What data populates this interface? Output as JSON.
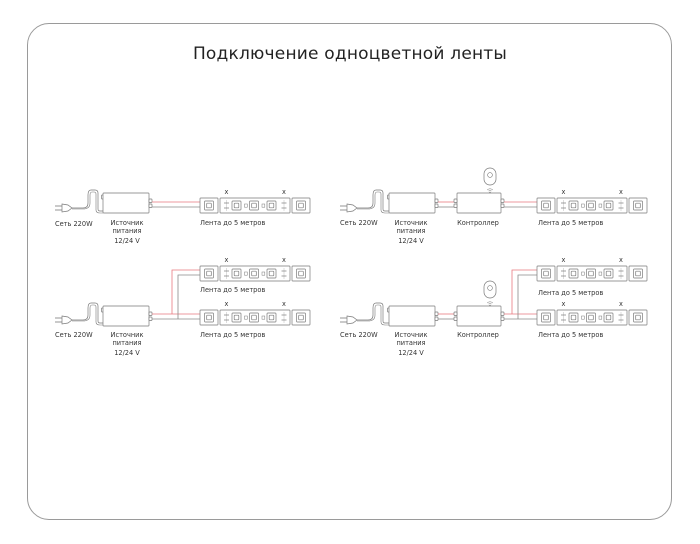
{
  "title": "Подключение одноцветной ленты",
  "labels": {
    "mains": "Сеть 220W",
    "psu_line1": "Источник",
    "psu_line2": "питания",
    "psu_voltage": "12/24 V",
    "controller": "Контроллер",
    "strip": "Лента до 5 метров",
    "cut_mark": "x"
  },
  "colors": {
    "positive_wire": "#e8797f",
    "negative_wire": "#8a8a8a",
    "outline": "#7a7a7a"
  },
  "diagrams": [
    {
      "name": "psu-to-single-strip"
    },
    {
      "name": "psu-controller-to-single-strip",
      "has_remote": true
    },
    {
      "name": "psu-to-two-strips-parallel"
    },
    {
      "name": "psu-controller-to-two-strips-parallel",
      "has_remote": true
    }
  ]
}
